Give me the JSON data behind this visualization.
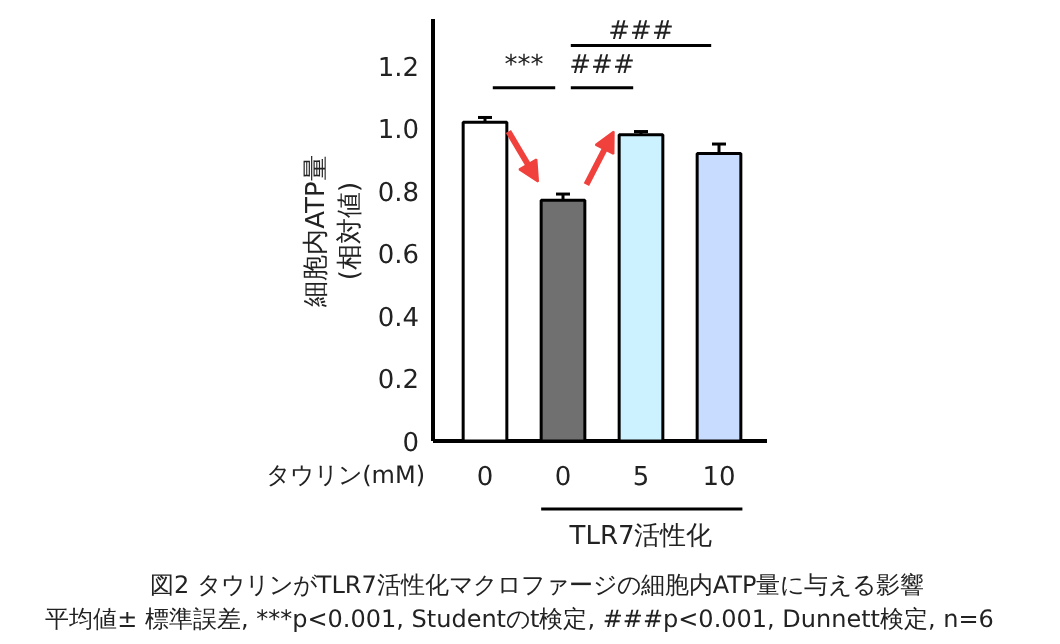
{
  "chart_data": {
    "type": "bar",
    "ylabel": "細胞内ATP量\n(相対値)",
    "xlabel": "タウリン(mM)",
    "categories": [
      "0",
      "0",
      "5",
      "10"
    ],
    "values": [
      1.02,
      0.77,
      0.98,
      0.92
    ],
    "errors": [
      [
        1.02,
        1.035
      ],
      [
        0.77,
        0.79
      ],
      [
        0.98,
        0.99
      ],
      [
        0.92,
        0.95
      ]
    ],
    "colors": [
      "#ffffff",
      "#707070",
      "#ccf2ff",
      "#c8dcff"
    ],
    "ylim": [
      0,
      1.35
    ],
    "yticks": [
      0,
      0.2,
      0.4,
      0.6,
      0.8,
      {
        "value": 1,
        "label": "1.0"
      },
      1.2
    ],
    "grid": false,
    "annotations": [
      "***",
      "###",
      "###",
      "TLR7活性化",
      "図2  タウリンがTLR7活性化マクロファージの細胞内ATP量に与える影響",
      "平均値± 標準誤差,    ***p<0.001, Studentのt検定, ###p<0.001, Dunnett検定, n=6"
    ]
  }
}
